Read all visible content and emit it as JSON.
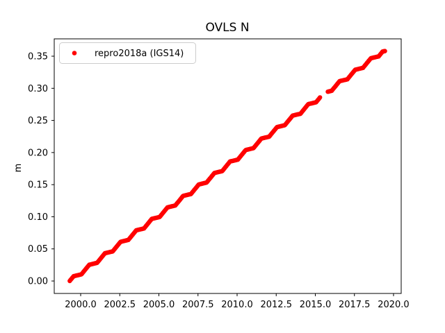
{
  "figure": {
    "title": "OVLS N",
    "ylabel": "m",
    "legend": {
      "label": "repro2018a (IGS14)",
      "marker": "dot",
      "marker_color": "#ff0000",
      "border_color": "#cccccc",
      "position": "upper left"
    },
    "colors": {
      "background": "#ffffff",
      "axes_frame": "#000000",
      "series_red": "#ff0000"
    }
  },
  "chart_data": {
    "type": "scatter",
    "title": "OVLS N",
    "xlabel": "",
    "ylabel": "m",
    "grid": false,
    "legend_position": "upper left",
    "xlim": [
      1998.31,
      2020.49
    ],
    "ylim": [
      -0.0194,
      0.377
    ],
    "xticks": [
      2000.0,
      2002.5,
      2005.0,
      2007.5,
      2010.0,
      2012.5,
      2015.0,
      2017.5,
      2020.0
    ],
    "xtick_labels": [
      "2000.0",
      "2002.5",
      "2005.0",
      "2007.5",
      "2010.0",
      "2012.5",
      "2015.0",
      "2017.5",
      "2020.0"
    ],
    "yticks": [
      0.0,
      0.05,
      0.1,
      0.15,
      0.2,
      0.25,
      0.3,
      0.35
    ],
    "ytick_labels": [
      "0.00",
      "0.05",
      "0.10",
      "0.15",
      "0.20",
      "0.25",
      "0.30",
      "0.35"
    ],
    "data_gap": {
      "from": 2015.4,
      "to": 2015.65
    },
    "series": [
      {
        "name": "repro2018a (IGS14)",
        "color": "#ff0000",
        "marker": "dot",
        "points": [
          [
            1999.3,
            0.0
          ],
          [
            1999.55,
            0.0075
          ],
          [
            1999.8,
            0.0089
          ],
          [
            2000.05,
            0.0104
          ],
          [
            2000.3,
            0.0179
          ],
          [
            2000.55,
            0.0253
          ],
          [
            2000.8,
            0.0268
          ],
          [
            2001.05,
            0.0283
          ],
          [
            2001.3,
            0.0357
          ],
          [
            2001.55,
            0.0432
          ],
          [
            2001.8,
            0.0447
          ],
          [
            2002.05,
            0.0461
          ],
          [
            2002.3,
            0.0536
          ],
          [
            2002.55,
            0.061
          ],
          [
            2002.8,
            0.0625
          ],
          [
            2003.05,
            0.064
          ],
          [
            2003.3,
            0.0714
          ],
          [
            2003.55,
            0.0789
          ],
          [
            2003.8,
            0.0804
          ],
          [
            2004.05,
            0.0818
          ],
          [
            2004.3,
            0.0893
          ],
          [
            2004.55,
            0.0968
          ],
          [
            2004.8,
            0.0982
          ],
          [
            2005.05,
            0.0997
          ],
          [
            2005.3,
            0.1072
          ],
          [
            2005.55,
            0.1146
          ],
          [
            2005.8,
            0.1161
          ],
          [
            2006.05,
            0.1176
          ],
          [
            2006.3,
            0.125
          ],
          [
            2006.55,
            0.1325
          ],
          [
            2006.8,
            0.134
          ],
          [
            2007.05,
            0.1354
          ],
          [
            2007.3,
            0.1429
          ],
          [
            2007.55,
            0.1503
          ],
          [
            2007.8,
            0.1518
          ],
          [
            2008.05,
            0.1533
          ],
          [
            2008.3,
            0.1607
          ],
          [
            2008.55,
            0.1682
          ],
          [
            2008.8,
            0.1697
          ],
          [
            2009.05,
            0.1711
          ],
          [
            2009.3,
            0.1786
          ],
          [
            2009.55,
            0.1861
          ],
          [
            2009.8,
            0.1875
          ],
          [
            2010.05,
            0.189
          ],
          [
            2010.3,
            0.1965
          ],
          [
            2010.55,
            0.2039
          ],
          [
            2010.8,
            0.2054
          ],
          [
            2011.05,
            0.2069
          ],
          [
            2011.3,
            0.2143
          ],
          [
            2011.55,
            0.2218
          ],
          [
            2011.8,
            0.2233
          ],
          [
            2012.05,
            0.2247
          ],
          [
            2012.3,
            0.2322
          ],
          [
            2012.55,
            0.2396
          ],
          [
            2012.8,
            0.2411
          ],
          [
            2013.05,
            0.2426
          ],
          [
            2013.3,
            0.25
          ],
          [
            2013.55,
            0.2575
          ],
          [
            2013.8,
            0.259
          ],
          [
            2014.05,
            0.2604
          ],
          [
            2014.3,
            0.2679
          ],
          [
            2014.55,
            0.2754
          ],
          [
            2014.8,
            0.2768
          ],
          [
            2015.05,
            0.2783
          ],
          [
            2015.3,
            0.2858
          ],
          [
            2015.8,
            0.2947
          ],
          [
            2016.05,
            0.2962
          ],
          [
            2016.3,
            0.3036
          ],
          [
            2016.55,
            0.3111
          ],
          [
            2016.8,
            0.3126
          ],
          [
            2017.05,
            0.314
          ],
          [
            2017.3,
            0.3215
          ],
          [
            2017.55,
            0.3289
          ],
          [
            2017.8,
            0.3304
          ],
          [
            2018.05,
            0.3319
          ],
          [
            2018.3,
            0.3393
          ],
          [
            2018.55,
            0.3468
          ],
          [
            2018.8,
            0.3483
          ],
          [
            2019.05,
            0.3497
          ],
          [
            2019.3,
            0.3572
          ],
          [
            2019.45,
            0.358
          ]
        ]
      }
    ]
  }
}
